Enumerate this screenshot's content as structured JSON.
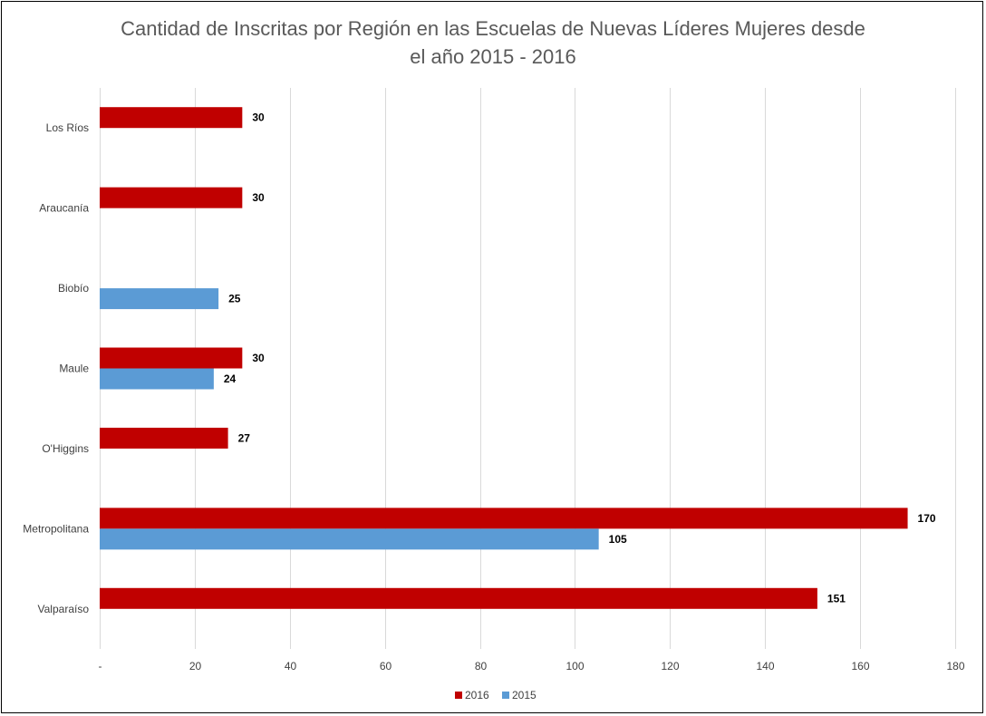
{
  "chart_data": {
    "type": "bar",
    "orientation": "horizontal",
    "title_line1": "Cantidad de Inscritas por Región en las Escuelas de Nuevas Líderes Mujeres desde",
    "title_line2": "el año 2015 - 2016",
    "categories": [
      "Los Ríos",
      "Araucanía",
      "Biobío",
      "Maule",
      "O'Higgins",
      "Metropolitana",
      "Valparaíso"
    ],
    "series": [
      {
        "name": "2016",
        "color": "#C00000",
        "values": [
          30,
          30,
          null,
          30,
          27,
          170,
          151
        ]
      },
      {
        "name": "2015",
        "color": "#5B9BD5",
        "values": [
          null,
          null,
          25,
          24,
          null,
          105,
          null
        ]
      }
    ],
    "xlim": [
      0,
      180
    ],
    "x_ticks": [
      0,
      20,
      40,
      60,
      80,
      100,
      120,
      140,
      160,
      180
    ],
    "x_tick_labels": [
      "-",
      "20",
      "40",
      "60",
      "80",
      "100",
      "120",
      "140",
      "160",
      "180"
    ],
    "grid": true,
    "legend_position": "bottom"
  }
}
